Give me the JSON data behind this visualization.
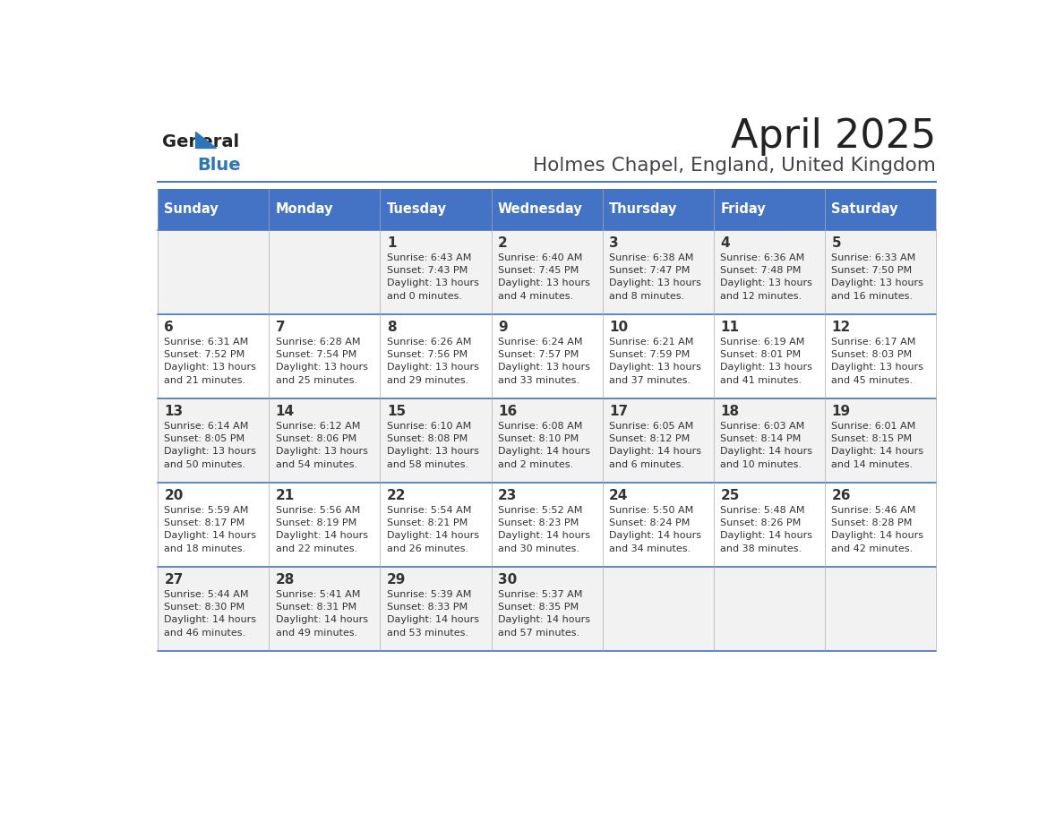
{
  "title": "April 2025",
  "subtitle": "Holmes Chapel, England, United Kingdom",
  "days_of_week": [
    "Sunday",
    "Monday",
    "Tuesday",
    "Wednesday",
    "Thursday",
    "Friday",
    "Saturday"
  ],
  "header_bg": "#4472C4",
  "header_text_color": "#FFFFFF",
  "row_bg_even": "#F2F2F2",
  "row_bg_odd": "#FFFFFF",
  "cell_text_color": "#333333",
  "title_color": "#222222",
  "subtitle_color": "#444444",
  "logo_general_color": "#222222",
  "logo_blue_color": "#2E75B6",
  "divider_color": "#4472C4",
  "grid_color": "#AAAAAA",
  "weeks": [
    [
      {
        "day": "",
        "info": ""
      },
      {
        "day": "",
        "info": ""
      },
      {
        "day": "1",
        "info": "Sunrise: 6:43 AM\nSunset: 7:43 PM\nDaylight: 13 hours\nand 0 minutes."
      },
      {
        "day": "2",
        "info": "Sunrise: 6:40 AM\nSunset: 7:45 PM\nDaylight: 13 hours\nand 4 minutes."
      },
      {
        "day": "3",
        "info": "Sunrise: 6:38 AM\nSunset: 7:47 PM\nDaylight: 13 hours\nand 8 minutes."
      },
      {
        "day": "4",
        "info": "Sunrise: 6:36 AM\nSunset: 7:48 PM\nDaylight: 13 hours\nand 12 minutes."
      },
      {
        "day": "5",
        "info": "Sunrise: 6:33 AM\nSunset: 7:50 PM\nDaylight: 13 hours\nand 16 minutes."
      }
    ],
    [
      {
        "day": "6",
        "info": "Sunrise: 6:31 AM\nSunset: 7:52 PM\nDaylight: 13 hours\nand 21 minutes."
      },
      {
        "day": "7",
        "info": "Sunrise: 6:28 AM\nSunset: 7:54 PM\nDaylight: 13 hours\nand 25 minutes."
      },
      {
        "day": "8",
        "info": "Sunrise: 6:26 AM\nSunset: 7:56 PM\nDaylight: 13 hours\nand 29 minutes."
      },
      {
        "day": "9",
        "info": "Sunrise: 6:24 AM\nSunset: 7:57 PM\nDaylight: 13 hours\nand 33 minutes."
      },
      {
        "day": "10",
        "info": "Sunrise: 6:21 AM\nSunset: 7:59 PM\nDaylight: 13 hours\nand 37 minutes."
      },
      {
        "day": "11",
        "info": "Sunrise: 6:19 AM\nSunset: 8:01 PM\nDaylight: 13 hours\nand 41 minutes."
      },
      {
        "day": "12",
        "info": "Sunrise: 6:17 AM\nSunset: 8:03 PM\nDaylight: 13 hours\nand 45 minutes."
      }
    ],
    [
      {
        "day": "13",
        "info": "Sunrise: 6:14 AM\nSunset: 8:05 PM\nDaylight: 13 hours\nand 50 minutes."
      },
      {
        "day": "14",
        "info": "Sunrise: 6:12 AM\nSunset: 8:06 PM\nDaylight: 13 hours\nand 54 minutes."
      },
      {
        "day": "15",
        "info": "Sunrise: 6:10 AM\nSunset: 8:08 PM\nDaylight: 13 hours\nand 58 minutes."
      },
      {
        "day": "16",
        "info": "Sunrise: 6:08 AM\nSunset: 8:10 PM\nDaylight: 14 hours\nand 2 minutes."
      },
      {
        "day": "17",
        "info": "Sunrise: 6:05 AM\nSunset: 8:12 PM\nDaylight: 14 hours\nand 6 minutes."
      },
      {
        "day": "18",
        "info": "Sunrise: 6:03 AM\nSunset: 8:14 PM\nDaylight: 14 hours\nand 10 minutes."
      },
      {
        "day": "19",
        "info": "Sunrise: 6:01 AM\nSunset: 8:15 PM\nDaylight: 14 hours\nand 14 minutes."
      }
    ],
    [
      {
        "day": "20",
        "info": "Sunrise: 5:59 AM\nSunset: 8:17 PM\nDaylight: 14 hours\nand 18 minutes."
      },
      {
        "day": "21",
        "info": "Sunrise: 5:56 AM\nSunset: 8:19 PM\nDaylight: 14 hours\nand 22 minutes."
      },
      {
        "day": "22",
        "info": "Sunrise: 5:54 AM\nSunset: 8:21 PM\nDaylight: 14 hours\nand 26 minutes."
      },
      {
        "day": "23",
        "info": "Sunrise: 5:52 AM\nSunset: 8:23 PM\nDaylight: 14 hours\nand 30 minutes."
      },
      {
        "day": "24",
        "info": "Sunrise: 5:50 AM\nSunset: 8:24 PM\nDaylight: 14 hours\nand 34 minutes."
      },
      {
        "day": "25",
        "info": "Sunrise: 5:48 AM\nSunset: 8:26 PM\nDaylight: 14 hours\nand 38 minutes."
      },
      {
        "day": "26",
        "info": "Sunrise: 5:46 AM\nSunset: 8:28 PM\nDaylight: 14 hours\nand 42 minutes."
      }
    ],
    [
      {
        "day": "27",
        "info": "Sunrise: 5:44 AM\nSunset: 8:30 PM\nDaylight: 14 hours\nand 46 minutes."
      },
      {
        "day": "28",
        "info": "Sunrise: 5:41 AM\nSunset: 8:31 PM\nDaylight: 14 hours\nand 49 minutes."
      },
      {
        "day": "29",
        "info": "Sunrise: 5:39 AM\nSunset: 8:33 PM\nDaylight: 14 hours\nand 53 minutes."
      },
      {
        "day": "30",
        "info": "Sunrise: 5:37 AM\nSunset: 8:35 PM\nDaylight: 14 hours\nand 57 minutes."
      },
      {
        "day": "",
        "info": ""
      },
      {
        "day": "",
        "info": ""
      },
      {
        "day": "",
        "info": ""
      }
    ]
  ]
}
